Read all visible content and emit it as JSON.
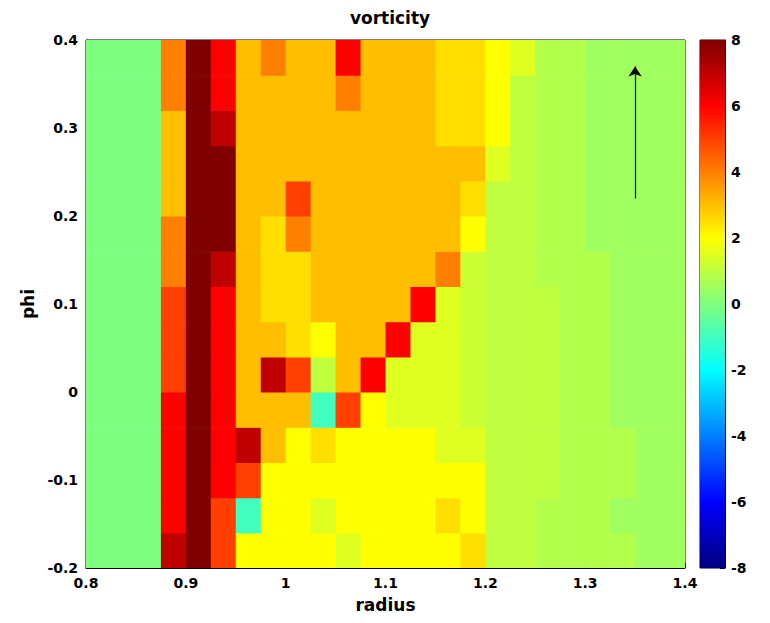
{
  "chart_data": {
    "type": "heatmap",
    "title": "vorticity",
    "xlabel": "radius",
    "ylabel": "phi",
    "xlim": [
      0.8,
      1.4
    ],
    "xticks": [
      0.8,
      0.9,
      1,
      1.1,
      1.2,
      1.3,
      1.4
    ],
    "ylim": [
      -0.2,
      0.4
    ],
    "yticks": [
      -0.2,
      -0.1,
      0,
      0.1,
      0.2,
      0.3,
      0.4
    ],
    "x": [
      0.8125,
      0.8375,
      0.8625,
      0.8875,
      0.9125,
      0.9375,
      0.9625,
      0.9875,
      1.0125,
      1.0375,
      1.0625,
      1.0875,
      1.1125,
      1.1375,
      1.1625,
      1.1875,
      1.2125,
      1.2375,
      1.2625,
      1.2875,
      1.3125,
      1.3375,
      1.3625,
      1.3875
    ],
    "y": [
      -0.18,
      -0.14,
      -0.1,
      -0.06,
      -0.02,
      0.02,
      0.06,
      0.1,
      0.14,
      0.18,
      0.22,
      0.26,
      0.3,
      0.34,
      0.38
    ],
    "z": [
      [
        0,
        0,
        0,
        7,
        8,
        5,
        2,
        2,
        2,
        2,
        1.5,
        2,
        2,
        2,
        2,
        2.5,
        1,
        1,
        0.8,
        0.8,
        0.8,
        0.8,
        0.5,
        0.5
      ],
      [
        0,
        0,
        0,
        6,
        8,
        5,
        -1,
        2,
        2,
        1.5,
        2,
        2,
        2,
        2,
        2.5,
        2,
        1,
        1,
        0.8,
        0.8,
        0.8,
        0.5,
        0.5,
        0.5
      ],
      [
        0,
        0,
        0,
        6,
        8,
        6,
        5,
        2,
        2,
        2,
        2,
        2,
        2,
        2,
        2,
        2,
        1,
        1,
        1,
        0.8,
        0.8,
        0.8,
        0.5,
        0.5
      ],
      [
        0,
        0,
        0,
        6,
        8,
        6,
        7,
        3,
        2,
        2.5,
        2,
        2,
        2,
        2,
        1.5,
        1.5,
        1,
        1,
        1,
        0.8,
        0.8,
        0.8,
        0.5,
        0.5
      ],
      [
        0,
        0,
        0,
        6,
        8,
        6,
        3,
        3,
        3,
        -1,
        5,
        2,
        1.5,
        1.5,
        1.5,
        1.2,
        1,
        1,
        1,
        0.8,
        0.8,
        0.5,
        0.5,
        0.5
      ],
      [
        0,
        0,
        0,
        5,
        8,
        6,
        3,
        7,
        5,
        1,
        3,
        6,
        1.5,
        1.5,
        1.5,
        1.2,
        1,
        1,
        1,
        0.8,
        0.8,
        0.5,
        0.5,
        0.5
      ],
      [
        0,
        0,
        0,
        5,
        8,
        6,
        3,
        3,
        2.5,
        2,
        3,
        3,
        6,
        1.5,
        1.5,
        1.2,
        1,
        1,
        1,
        0.8,
        0.8,
        0.5,
        0.5,
        0.5
      ],
      [
        0,
        0,
        0,
        5,
        8,
        6,
        3,
        2.5,
        2.5,
        3,
        3,
        3,
        3,
        6,
        1.5,
        1.2,
        1,
        1,
        1,
        0.8,
        0.8,
        0.5,
        0.5,
        0.5
      ],
      [
        0,
        0,
        0,
        4,
        8,
        7,
        3,
        2.5,
        2.5,
        3,
        3,
        3,
        3,
        3,
        4,
        1.2,
        1,
        1,
        0.8,
        0.8,
        0.8,
        0.5,
        0.5,
        0.5
      ],
      [
        0,
        0,
        0,
        4,
        8,
        8,
        3,
        2.5,
        4,
        3,
        3,
        3,
        3,
        3,
        3,
        2,
        1,
        1,
        0.8,
        0.8,
        0.5,
        0.5,
        0.5,
        0.5
      ],
      [
        0,
        0,
        0,
        3,
        8,
        8,
        3,
        3,
        5,
        3,
        3,
        3,
        3,
        3,
        3,
        2.5,
        1,
        1,
        0.8,
        0.8,
        0.5,
        0.5,
        0.5,
        0.5
      ],
      [
        0,
        0,
        0,
        3,
        8,
        8,
        3,
        3,
        3,
        3,
        3,
        3,
        3,
        3,
        3,
        3,
        1.5,
        1,
        0.8,
        0.8,
        0.5,
        0.5,
        0.5,
        0.5
      ],
      [
        0,
        0,
        0,
        3,
        8,
        7,
        3,
        3,
        3,
        3,
        3,
        3,
        3,
        3,
        2.5,
        2.5,
        2,
        1,
        0.8,
        0.8,
        0.5,
        0.5,
        0.5,
        0.5
      ],
      [
        0,
        0,
        0,
        4,
        8,
        6,
        3,
        3,
        3,
        3,
        4,
        3,
        3,
        3,
        2.5,
        2.5,
        2,
        1,
        0.8,
        0.8,
        0.5,
        0.5,
        0.5,
        0.5
      ],
      [
        0,
        0,
        0,
        4,
        8,
        6,
        3,
        4,
        3,
        3,
        6,
        3,
        3,
        3,
        2.5,
        2.5,
        2,
        1.5,
        0.8,
        0.8,
        0.5,
        0.5,
        0.5,
        0.5
      ]
    ],
    "colorbar": {
      "range": [
        -8,
        8
      ],
      "ticks": [
        -8,
        -6,
        -4,
        -2,
        0,
        2,
        4,
        6,
        8
      ]
    },
    "arrow": {
      "x": 1.35,
      "y": [
        0.22,
        0.37
      ]
    }
  }
}
